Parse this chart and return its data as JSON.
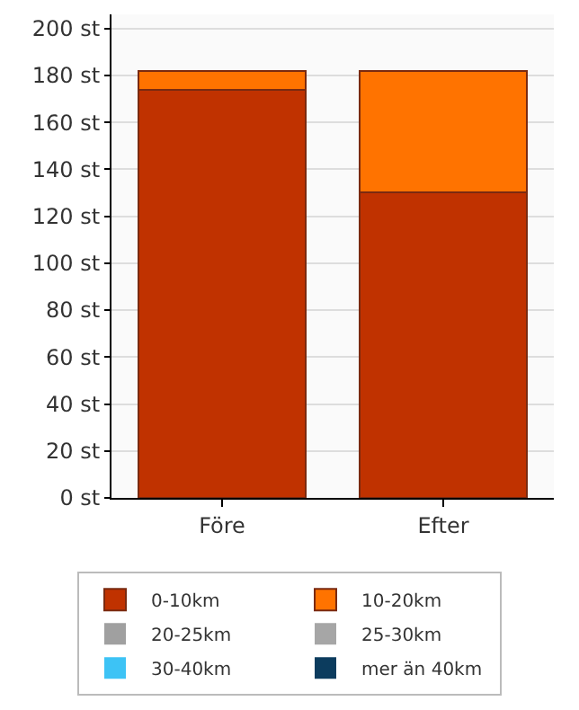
{
  "chart_data": {
    "type": "bar",
    "stacked": true,
    "categories": [
      "Före",
      "Efter"
    ],
    "series": [
      {
        "name": "0-10km",
        "color": "#c03200",
        "values": [
          174,
          130
        ]
      },
      {
        "name": "10-20km",
        "color": "#ff7300",
        "values": [
          8,
          52
        ]
      },
      {
        "name": "20-25km",
        "color": "#a0a0a0",
        "values": [
          0,
          0
        ]
      },
      {
        "name": "25-30km",
        "color": "#a6a6a6",
        "values": [
          0,
          0
        ]
      },
      {
        "name": "30-40km",
        "color": "#3dc3f5",
        "values": [
          0,
          0
        ]
      },
      {
        "name": "mer än 40km",
        "color": "#0c3c5e",
        "values": [
          0,
          0
        ]
      }
    ],
    "ylim": [
      0,
      206
    ],
    "yticks": [
      {
        "value": 0,
        "label": "0 st"
      },
      {
        "value": 20,
        "label": "20 st"
      },
      {
        "value": 40,
        "label": "40 st"
      },
      {
        "value": 60,
        "label": "60 st"
      },
      {
        "value": 80,
        "label": "80 st"
      },
      {
        "value": 100,
        "label": "100 st"
      },
      {
        "value": 120,
        "label": "120 st"
      },
      {
        "value": 140,
        "label": "140 st"
      },
      {
        "value": 160,
        "label": "160 st"
      },
      {
        "value": 180,
        "label": "180 st"
      },
      {
        "value": 200,
        "label": "200 st"
      }
    ],
    "grid": "y",
    "legend": "bottom"
  }
}
